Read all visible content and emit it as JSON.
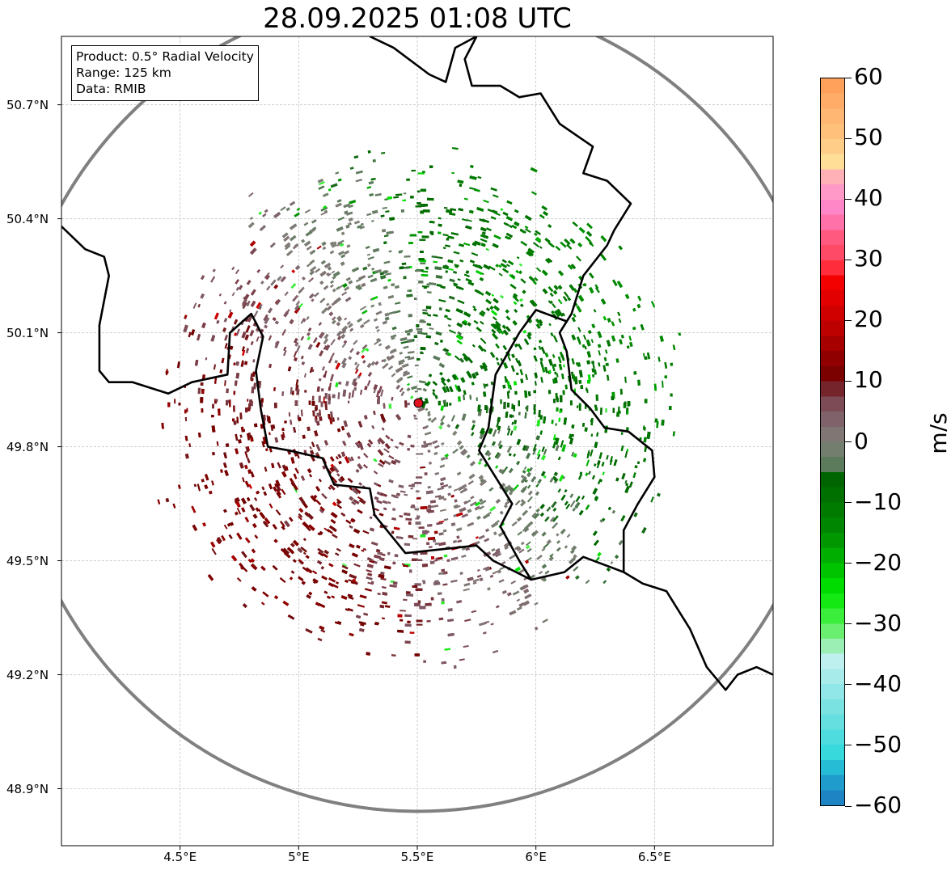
{
  "title": "28.09.2025 01:08 UTC",
  "info": {
    "product": "Product: 0.5° Radial Velocity",
    "range": "Range: 125 km",
    "data": "Data: RMIB"
  },
  "axes": {
    "lon_range": [
      4.0,
      7.0
    ],
    "lat_range": [
      48.75,
      50.88
    ],
    "y_ticks": [
      {
        "value": 50.7,
        "label": "50.7°N"
      },
      {
        "value": 50.4,
        "label": "50.4°N"
      },
      {
        "value": 50.1,
        "label": "50.1°N"
      },
      {
        "value": 49.8,
        "label": "49.8°N"
      },
      {
        "value": 49.5,
        "label": "49.5°N"
      },
      {
        "value": 49.2,
        "label": "49.2°N"
      },
      {
        "value": 48.9,
        "label": "48.9°N"
      }
    ],
    "x_ticks": [
      {
        "value": 4.5,
        "label": "4.5°E"
      },
      {
        "value": 5.0,
        "label": "5°E"
      },
      {
        "value": 5.5,
        "label": "5.5°E"
      },
      {
        "value": 6.0,
        "label": "6°E"
      },
      {
        "value": 6.5,
        "label": "6.5°E"
      }
    ]
  },
  "radar": {
    "site_lon": 5.505,
    "site_lat": 49.915,
    "range_ring_color": "#808080",
    "site_color": "#e0141e"
  },
  "colorbar": {
    "unit": "m/s",
    "min": -60,
    "max": 60,
    "ticks": [
      {
        "value": 60,
        "label": "60"
      },
      {
        "value": 50,
        "label": "50"
      },
      {
        "value": 40,
        "label": "40"
      },
      {
        "value": 30,
        "label": "30"
      },
      {
        "value": 20,
        "label": "20"
      },
      {
        "value": 10,
        "label": "10"
      },
      {
        "value": 0,
        "label": "0"
      },
      {
        "value": -10,
        "label": "−10"
      },
      {
        "value": -20,
        "label": "−20"
      },
      {
        "value": -30,
        "label": "−30"
      },
      {
        "value": -40,
        "label": "−40"
      },
      {
        "value": -50,
        "label": "−50"
      },
      {
        "value": -60,
        "label": "−60"
      }
    ],
    "stops": [
      {
        "v": 60,
        "c": "#ff9a55"
      },
      {
        "v": 55,
        "c": "#ffb26e"
      },
      {
        "v": 50,
        "c": "#ffc480"
      },
      {
        "v": 46,
        "c": "#ffe19a"
      },
      {
        "v": 44,
        "c": "#ffb4b4"
      },
      {
        "v": 42,
        "c": "#ff9ec8"
      },
      {
        "v": 38,
        "c": "#ff82c8"
      },
      {
        "v": 34,
        "c": "#ff5a82"
      },
      {
        "v": 29,
        "c": "#ff3c50"
      },
      {
        "v": 28,
        "c": "#ff0000"
      },
      {
        "v": 20,
        "c": "#c80000"
      },
      {
        "v": 10,
        "c": "#700000"
      },
      {
        "v": 8,
        "c": "#7a3a44"
      },
      {
        "v": 4,
        "c": "#80606a"
      },
      {
        "v": 0,
        "c": "#808078"
      },
      {
        "v": -4,
        "c": "#5a7a5a"
      },
      {
        "v": -6,
        "c": "#006400"
      },
      {
        "v": -15,
        "c": "#008c00"
      },
      {
        "v": -25,
        "c": "#00e600"
      },
      {
        "v": -30,
        "c": "#50f050"
      },
      {
        "v": -33,
        "c": "#90eea0"
      },
      {
        "v": -36,
        "c": "#c0f0f0"
      },
      {
        "v": -45,
        "c": "#70e0e0"
      },
      {
        "v": -52,
        "c": "#30d8dc"
      },
      {
        "v": -55,
        "c": "#20a8d0"
      },
      {
        "v": -60,
        "c": "#1f78c0"
      }
    ]
  },
  "borders": [
    [
      [
        4.0,
        50.38
      ],
      [
        4.1,
        50.32
      ],
      [
        4.18,
        50.3
      ],
      [
        4.2,
        50.25
      ],
      [
        4.16,
        50.12
      ],
      [
        4.16,
        50.0
      ],
      [
        4.2,
        49.97
      ],
      [
        4.3,
        49.97
      ],
      [
        4.45,
        49.94
      ],
      [
        4.55,
        49.97
      ],
      [
        4.7,
        49.99
      ],
      [
        4.71,
        50.1
      ],
      [
        4.8,
        50.15
      ],
      [
        4.85,
        50.09
      ],
      [
        4.82,
        50.0
      ],
      [
        4.84,
        49.9
      ],
      [
        4.87,
        49.8
      ],
      [
        4.96,
        49.79
      ],
      [
        5.1,
        49.77
      ],
      [
        5.15,
        49.7
      ],
      [
        5.3,
        49.69
      ],
      [
        5.32,
        49.62
      ],
      [
        5.45,
        49.52
      ],
      [
        5.6,
        49.53
      ],
      [
        5.75,
        49.54
      ],
      [
        5.82,
        49.5
      ],
      [
        5.98,
        49.45
      ],
      [
        6.12,
        49.47
      ],
      [
        6.2,
        49.51
      ],
      [
        6.37,
        49.47
      ],
      [
        6.45,
        49.44
      ],
      [
        6.55,
        49.42
      ],
      [
        6.65,
        49.32
      ],
      [
        6.72,
        49.22
      ],
      [
        6.8,
        49.16
      ],
      [
        6.85,
        49.2
      ],
      [
        6.93,
        49.22
      ],
      [
        7.0,
        49.2
      ]
    ],
    [
      [
        5.75,
        50.88
      ],
      [
        5.7,
        50.82
      ],
      [
        5.73,
        50.75
      ],
      [
        5.85,
        50.75
      ],
      [
        5.93,
        50.72
      ],
      [
        6.02,
        50.73
      ],
      [
        6.1,
        50.65
      ],
      [
        6.17,
        50.62
      ],
      [
        6.24,
        50.59
      ],
      [
        6.2,
        50.52
      ],
      [
        6.3,
        50.5
      ],
      [
        6.4,
        50.44
      ],
      [
        6.33,
        50.37
      ],
      [
        6.3,
        50.33
      ],
      [
        6.2,
        50.25
      ],
      [
        6.15,
        50.15
      ],
      [
        6.13,
        50.13
      ],
      [
        6.1,
        50.1
      ],
      [
        6.13,
        50.05
      ],
      [
        6.15,
        49.95
      ],
      [
        6.23,
        49.9
      ],
      [
        6.29,
        49.85
      ],
      [
        6.39,
        49.84
      ],
      [
        6.49,
        49.79
      ],
      [
        6.5,
        49.72
      ],
      [
        6.43,
        49.65
      ],
      [
        6.37,
        49.58
      ],
      [
        6.37,
        49.47
      ]
    ],
    [
      [
        6.13,
        50.13
      ],
      [
        6.0,
        50.16
      ],
      [
        5.93,
        50.1
      ],
      [
        5.83,
        49.99
      ],
      [
        5.8,
        49.85
      ],
      [
        5.76,
        49.79
      ],
      [
        5.9,
        49.65
      ],
      [
        5.85,
        49.59
      ],
      [
        5.93,
        49.5
      ],
      [
        5.98,
        49.45
      ]
    ],
    [
      [
        5.75,
        50.88
      ],
      [
        5.66,
        50.85
      ],
      [
        5.62,
        50.76
      ],
      [
        5.55,
        50.78
      ],
      [
        5.4,
        50.85
      ],
      [
        5.3,
        50.88
      ]
    ]
  ]
}
